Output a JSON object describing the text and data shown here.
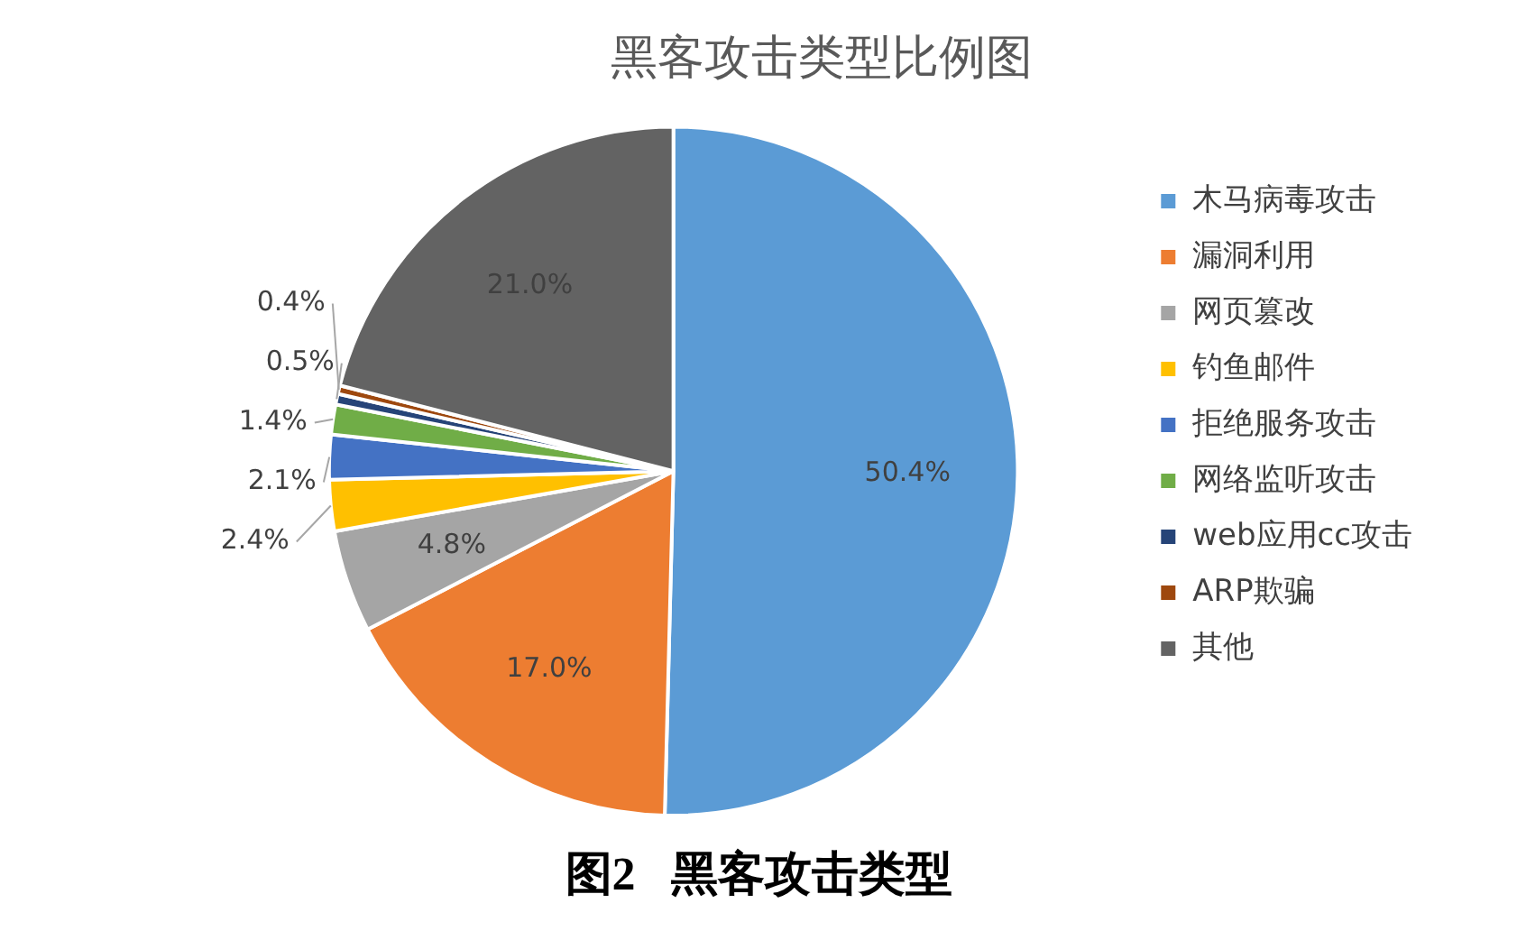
{
  "chart_data": {
    "type": "pie",
    "title": "黑客攻击类型比例图",
    "categories": [
      "木马病毒攻击",
      "漏洞利用",
      "网页篡改",
      "钓鱼邮件",
      "拒绝服务攻击",
      "网络监听攻击",
      "web应用cc攻击",
      "ARP欺骗",
      "其他"
    ],
    "values": [
      50.4,
      17.0,
      4.8,
      2.4,
      2.1,
      1.4,
      0.5,
      0.4,
      21.0
    ],
    "colors": [
      "#5b9bd5",
      "#ed7d31",
      "#a5a5a5",
      "#ffc000",
      "#4472c4",
      "#70ad47",
      "#264478",
      "#9e480e",
      "#636363"
    ],
    "value_labels": [
      "50.4%",
      "17.0%",
      "4.8%",
      "2.4%",
      "2.1%",
      "1.4%",
      "0.5%",
      "0.4%",
      "21.0%"
    ],
    "legend": "right",
    "annotations": [
      "图2   黑客攻击类型"
    ]
  }
}
